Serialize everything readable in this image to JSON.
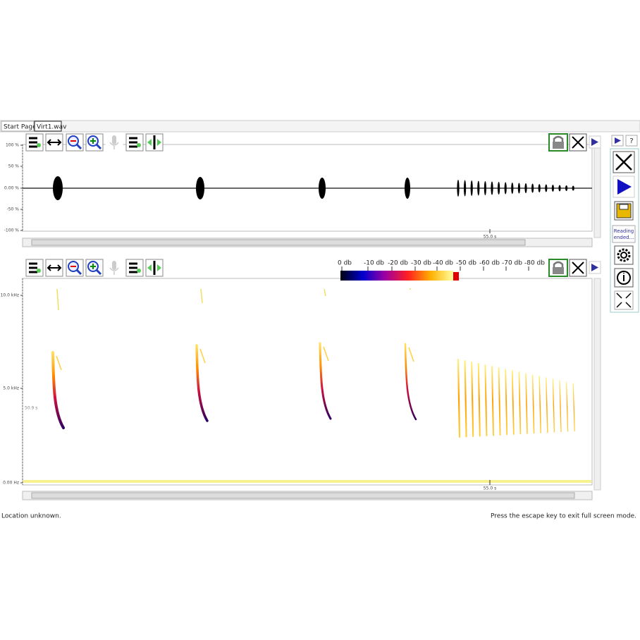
{
  "tabs": [
    "Start Page",
    "Virt1.wav"
  ],
  "waveform": {
    "y_labels": [
      "100 %",
      "50 %",
      "0.00 %",
      "-50 %",
      "-100 %"
    ],
    "time_label": "55.0 s"
  },
  "spectrogram": {
    "y_labels": [
      "10.0 kHz",
      "5.0 kHz",
      "0.00 Hz"
    ],
    "cursor_label": "50.9 s",
    "time_label": "55.0 s",
    "colorbar_labels": [
      "0 db",
      "-10 db",
      "-20 db",
      "-30 db",
      "-40 db",
      "-50 db",
      "-60 db",
      "-70 db",
      "-80 db"
    ]
  },
  "sidebar": {
    "help": "?",
    "status_lines": [
      "Reading",
      "ended..."
    ]
  },
  "status_bar": {
    "location": "Location unknown.",
    "hint": "Press the escape key to exit full screen mode."
  }
}
